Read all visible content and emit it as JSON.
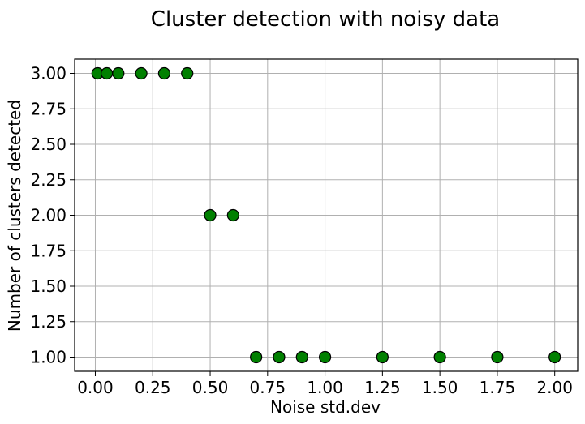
{
  "chart_data": {
    "type": "scatter",
    "title": "Cluster detection with noisy data",
    "xlabel": "Noise std.dev",
    "ylabel": "Number of clusters detected",
    "xlim": [
      -0.09,
      2.1
    ],
    "ylim": [
      0.9,
      3.1
    ],
    "x_ticks": [
      "0.00",
      "0.25",
      "0.50",
      "0.75",
      "1.00",
      "1.25",
      "1.50",
      "1.75",
      "2.00"
    ],
    "y_ticks": [
      "1.00",
      "1.25",
      "1.50",
      "1.75",
      "2.00",
      "2.25",
      "2.50",
      "2.75",
      "3.00"
    ],
    "grid": true,
    "marker_color": "#008000",
    "marker_edge_color": "#000000",
    "grid_color": "#b0b0b0",
    "points": [
      {
        "x": 0.01,
        "y": 3
      },
      {
        "x": 0.05,
        "y": 3
      },
      {
        "x": 0.1,
        "y": 3
      },
      {
        "x": 0.2,
        "y": 3
      },
      {
        "x": 0.3,
        "y": 3
      },
      {
        "x": 0.4,
        "y": 3
      },
      {
        "x": 0.5,
        "y": 2
      },
      {
        "x": 0.6,
        "y": 2
      },
      {
        "x": 0.7,
        "y": 1
      },
      {
        "x": 0.8,
        "y": 1
      },
      {
        "x": 0.9,
        "y": 1
      },
      {
        "x": 1.0,
        "y": 1
      },
      {
        "x": 1.25,
        "y": 1
      },
      {
        "x": 1.5,
        "y": 1
      },
      {
        "x": 1.75,
        "y": 1
      },
      {
        "x": 2.0,
        "y": 1
      }
    ]
  }
}
